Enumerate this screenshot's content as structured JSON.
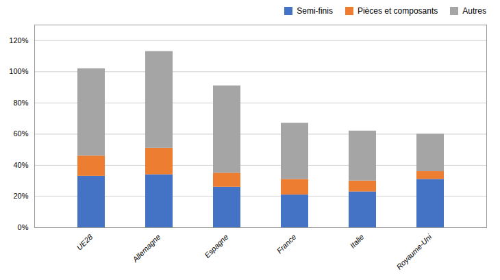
{
  "chart_data": {
    "type": "bar",
    "stacked": true,
    "categories": [
      "UE28",
      "Allemagne",
      "Espagne",
      "France",
      "Italie",
      "Royaume-Uni"
    ],
    "series": [
      {
        "name": "Semi-finis",
        "color": "#4472C4",
        "values": [
          33,
          34,
          26,
          21,
          23,
          31
        ]
      },
      {
        "name": "Pièces et composants",
        "color": "#ED7D31",
        "values": [
          13,
          17,
          9,
          10,
          7,
          5
        ]
      },
      {
        "name": "Autres",
        "color": "#A5A5A5",
        "values": [
          56,
          62,
          56,
          36,
          32,
          24
        ]
      }
    ],
    "ylim": [
      0,
      130
    ],
    "yticks": [
      {
        "value": 0,
        "label": "0%"
      },
      {
        "value": 20,
        "label": "20%"
      },
      {
        "value": 40,
        "label": "40%"
      },
      {
        "value": 60,
        "label": "60%"
      },
      {
        "value": 80,
        "label": "80%"
      },
      {
        "value": 100,
        "label": "100%"
      },
      {
        "value": 120,
        "label": "120%"
      }
    ],
    "grid": true,
    "legend": "upper right"
  }
}
